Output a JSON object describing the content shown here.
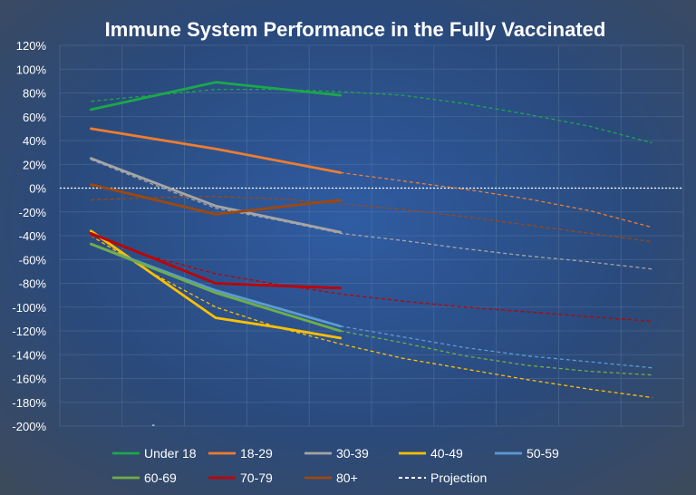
{
  "chart_data": {
    "type": "line",
    "title": "Immune System Performance in the Fully Vaccinated",
    "xlabel": "",
    "ylabel": "",
    "ylim": [
      -200,
      120
    ],
    "y_ticks": [
      "120%",
      "100%",
      "80%",
      "60%",
      "40%",
      "20%",
      "0%",
      "-20%",
      "-40%",
      "-60%",
      "-80%",
      "-100%",
      "-120%",
      "-140%",
      "-160%",
      "-180%",
      "-200%"
    ],
    "x_tick_labels": [
      "",
      "-",
      "",
      "",
      "",
      "",
      "",
      "",
      "",
      ""
    ],
    "x": [
      1,
      2,
      3,
      4,
      5,
      6,
      7,
      8,
      9,
      10
    ],
    "grid": true,
    "legend_position": "bottom",
    "series": [
      {
        "name": "Under 18",
        "color": "#1aa84a",
        "actual": [
          [
            1,
            66
          ],
          [
            3,
            89
          ],
          [
            5,
            78
          ]
        ],
        "projection": [
          [
            1,
            73
          ],
          [
            2,
            78
          ],
          [
            3,
            83
          ],
          [
            4,
            83
          ],
          [
            5,
            81
          ],
          [
            6,
            78
          ],
          [
            7,
            71
          ],
          [
            8,
            62
          ],
          [
            9,
            52
          ],
          [
            10,
            38
          ]
        ]
      },
      {
        "name": "18-29",
        "color": "#ed7d31",
        "actual": [
          [
            1,
            50
          ],
          [
            3,
            33
          ],
          [
            5,
            13
          ]
        ],
        "projection": [
          [
            5,
            13
          ],
          [
            6,
            6
          ],
          [
            7,
            -1
          ],
          [
            8,
            -9
          ],
          [
            9,
            -19
          ],
          [
            10,
            -33
          ]
        ]
      },
      {
        "name": "30-39",
        "color": "#a5a5a5",
        "actual": [
          [
            1,
            25
          ],
          [
            3,
            -15
          ],
          [
            5,
            -37
          ]
        ],
        "projection": [
          [
            1,
            24
          ],
          [
            2,
            3
          ],
          [
            3,
            -17
          ],
          [
            4,
            -27
          ],
          [
            5,
            -38
          ],
          [
            6,
            -44
          ],
          [
            7,
            -51
          ],
          [
            8,
            -57
          ],
          [
            9,
            -62
          ],
          [
            10,
            -68
          ]
        ]
      },
      {
        "name": "40-49",
        "color": "#ffc000",
        "actual": [
          [
            1,
            -36
          ],
          [
            3,
            -109
          ],
          [
            4,
            -117
          ],
          [
            5,
            -126
          ]
        ],
        "projection": [
          [
            1,
            -40
          ],
          [
            2,
            -72
          ],
          [
            3,
            -100
          ],
          [
            4,
            -117
          ],
          [
            5,
            -131
          ],
          [
            6,
            -143
          ],
          [
            7,
            -152
          ],
          [
            8,
            -161
          ],
          [
            9,
            -169
          ],
          [
            10,
            -176
          ]
        ]
      },
      {
        "name": "50-59",
        "color": "#5b9bd5",
        "actual": [
          [
            1,
            -47
          ],
          [
            3,
            -86
          ],
          [
            5,
            -116
          ]
        ],
        "projection": [
          [
            5,
            -116
          ],
          [
            6,
            -125
          ],
          [
            7,
            -134
          ],
          [
            8,
            -141
          ],
          [
            9,
            -146
          ],
          [
            10,
            -151
          ]
        ]
      },
      {
        "name": "60-69",
        "color": "#70ad47",
        "actual": [
          [
            1,
            -47
          ],
          [
            3,
            -88
          ],
          [
            5,
            -120
          ]
        ],
        "projection": [
          [
            5,
            -120
          ],
          [
            6,
            -130
          ],
          [
            7,
            -141
          ],
          [
            8,
            -149
          ],
          [
            9,
            -154
          ],
          [
            10,
            -157
          ]
        ]
      },
      {
        "name": "70-79",
        "color": "#c00000",
        "actual": [
          [
            1,
            -38
          ],
          [
            3,
            -80
          ],
          [
            5,
            -84
          ]
        ],
        "projection": [
          [
            1,
            -40
          ],
          [
            2,
            -58
          ],
          [
            3,
            -72
          ],
          [
            4,
            -81
          ],
          [
            5,
            -89
          ],
          [
            6,
            -95
          ],
          [
            7,
            -100
          ],
          [
            8,
            -104
          ],
          [
            9,
            -108
          ],
          [
            10,
            -112
          ]
        ]
      },
      {
        "name": "80+",
        "color": "#9e480e",
        "actual": [
          [
            1,
            3
          ],
          [
            3,
            -22
          ],
          [
            5,
            -10
          ]
        ],
        "projection": [
          [
            1,
            -10
          ],
          [
            2,
            -8
          ],
          [
            3,
            -7
          ],
          [
            4,
            -9
          ],
          [
            5,
            -13
          ],
          [
            6,
            -18
          ],
          [
            7,
            -24
          ],
          [
            8,
            -31
          ],
          [
            9,
            -38
          ],
          [
            10,
            -45
          ]
        ]
      }
    ],
    "projection_legend": {
      "name": "Projection",
      "color": "#ffffff"
    },
    "zero_line_color": "#ffffff"
  }
}
